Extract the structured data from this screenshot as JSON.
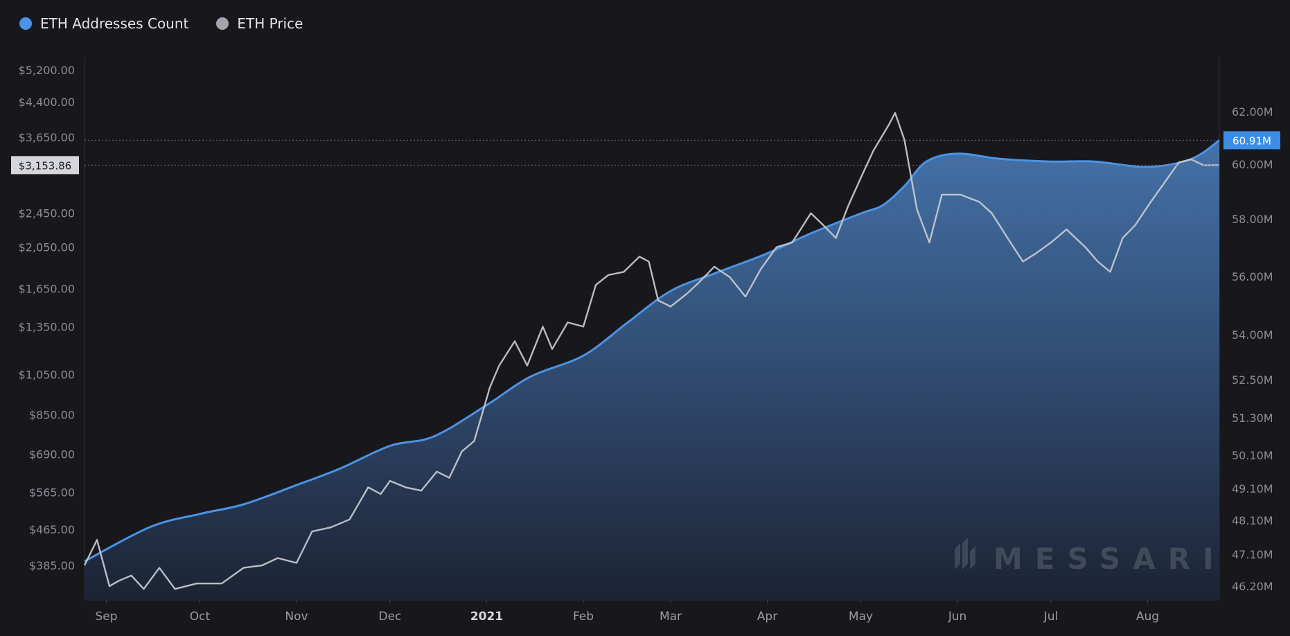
{
  "legend": {
    "series_a": "ETH Addresses Count",
    "series_b": "ETH Price"
  },
  "colors": {
    "background": "#18181c",
    "addresses": "#4b93e6",
    "price": "#c8cbd3",
    "area_top": "#4676b0",
    "area_bottom": "#1c2334",
    "current_price_badge": "#d4d6dc",
    "current_addr_badge": "#3a8ee6"
  },
  "watermark": "MESSARI",
  "current": {
    "price_label": "$3,153.86",
    "price_value": 3153.86,
    "addresses_label": "60.91M",
    "addresses_value": 60.91
  },
  "chart_data": {
    "type": "line",
    "x_range": [
      "2020-08-25",
      "2021-08-24"
    ],
    "x_tick_labels": [
      {
        "label": "Sep",
        "date": "2020-09-01"
      },
      {
        "label": "Oct",
        "date": "2020-10-01"
      },
      {
        "label": "Nov",
        "date": "2020-11-01"
      },
      {
        "label": "Dec",
        "date": "2020-12-01"
      },
      {
        "label": "2021",
        "date": "2021-01-01",
        "bold": true
      },
      {
        "label": "Feb",
        "date": "2021-02-01"
      },
      {
        "label": "Mar",
        "date": "2021-03-01"
      },
      {
        "label": "Apr",
        "date": "2021-04-01"
      },
      {
        "label": "May",
        "date": "2021-05-01"
      },
      {
        "label": "Jun",
        "date": "2021-06-01"
      },
      {
        "label": "Jul",
        "date": "2021-07-01"
      },
      {
        "label": "Aug",
        "date": "2021-08-01"
      }
    ],
    "y_left": {
      "scale": "log",
      "range": [
        325,
        5600
      ],
      "ticks": [
        385,
        465,
        565,
        690,
        850,
        1050,
        1350,
        1650,
        2050,
        2450,
        3650,
        4400,
        5200
      ],
      "tick_labels": [
        "$385.00",
        "$465.00",
        "$565.00",
        "$690.00",
        "$850.00",
        "$1,050.00",
        "$1,350.00",
        "$1,650.00",
        "$2,050.00",
        "$2,450.00",
        "$3,650.00",
        "$4,400.00",
        "$5,200.00"
      ]
    },
    "y_right": {
      "scale": "nonlinear",
      "ticks": [
        46.2,
        47.1,
        48.1,
        49.1,
        50.1,
        51.3,
        52.5,
        54.0,
        56.0,
        58.0,
        60.0,
        62.0
      ],
      "tick_labels": [
        "46.20M",
        "47.10M",
        "48.10M",
        "49.10M",
        "50.10M",
        "51.30M",
        "52.50M",
        "54.00M",
        "56.00M",
        "58.00M",
        "60.00M",
        "62.00M"
      ]
    },
    "series": [
      {
        "name": "ETH Addresses Count",
        "axis": "right",
        "unit": "M",
        "x": [
          "2020-08-25",
          "2020-09-15",
          "2020-10-01",
          "2020-10-15",
          "2020-11-01",
          "2020-11-15",
          "2020-12-01",
          "2020-12-15",
          "2021-01-01",
          "2021-01-15",
          "2021-02-01",
          "2021-02-15",
          "2021-03-01",
          "2021-03-15",
          "2021-04-01",
          "2021-04-15",
          "2021-05-01",
          "2021-05-08",
          "2021-05-15",
          "2021-05-22",
          "2021-06-01",
          "2021-06-15",
          "2021-07-01",
          "2021-07-15",
          "2021-08-01",
          "2021-08-15",
          "2021-08-24"
        ],
        "values": [
          46.9,
          47.9,
          48.3,
          48.6,
          49.2,
          49.7,
          50.4,
          50.7,
          51.7,
          52.6,
          53.3,
          54.4,
          55.5,
          56.1,
          56.8,
          57.5,
          58.2,
          58.5,
          59.2,
          60.1,
          60.4,
          60.2,
          60.1,
          60.1,
          59.9,
          60.2,
          60.91
        ]
      },
      {
        "name": "ETH Price",
        "axis": "left",
        "unit": "$",
        "x": [
          "2020-08-25",
          "2020-08-29",
          "2020-09-02",
          "2020-09-05",
          "2020-09-09",
          "2020-09-13",
          "2020-09-18",
          "2020-09-23",
          "2020-09-30",
          "2020-10-08",
          "2020-10-15",
          "2020-10-21",
          "2020-10-26",
          "2020-11-01",
          "2020-11-06",
          "2020-11-12",
          "2020-11-18",
          "2020-11-24",
          "2020-11-28",
          "2020-12-01",
          "2020-12-06",
          "2020-12-11",
          "2020-12-16",
          "2020-12-20",
          "2020-12-24",
          "2020-12-28",
          "2021-01-02",
          "2021-01-05",
          "2021-01-10",
          "2021-01-14",
          "2021-01-19",
          "2021-01-22",
          "2021-01-27",
          "2021-02-01",
          "2021-02-05",
          "2021-02-09",
          "2021-02-14",
          "2021-02-19",
          "2021-02-22",
          "2021-02-25",
          "2021-03-01",
          "2021-03-06",
          "2021-03-10",
          "2021-03-15",
          "2021-03-20",
          "2021-03-25",
          "2021-03-30",
          "2021-04-04",
          "2021-04-09",
          "2021-04-15",
          "2021-04-19",
          "2021-04-23",
          "2021-04-27",
          "2021-05-01",
          "2021-05-05",
          "2021-05-10",
          "2021-05-12",
          "2021-05-15",
          "2021-05-19",
          "2021-05-23",
          "2021-05-27",
          "2021-06-02",
          "2021-06-08",
          "2021-06-12",
          "2021-06-18",
          "2021-06-22",
          "2021-06-26",
          "2021-07-01",
          "2021-07-06",
          "2021-07-12",
          "2021-07-16",
          "2021-07-20",
          "2021-07-24",
          "2021-07-28",
          "2021-08-02",
          "2021-08-06",
          "2021-08-11",
          "2021-08-15",
          "2021-08-19",
          "2021-08-24"
        ],
        "values": [
          385,
          440,
          345,
          355,
          365,
          340,
          380,
          340,
          350,
          350,
          380,
          385,
          400,
          390,
          460,
          470,
          490,
          580,
          560,
          600,
          580,
          570,
          630,
          610,
          700,
          740,
          980,
          1100,
          1250,
          1100,
          1350,
          1200,
          1380,
          1350,
          1680,
          1770,
          1800,
          1950,
          1900,
          1550,
          1500,
          1600,
          1700,
          1850,
          1750,
          1580,
          1830,
          2050,
          2100,
          2450,
          2300,
          2150,
          2550,
          2950,
          3400,
          3900,
          4150,
          3600,
          2500,
          2100,
          2700,
          2700,
          2600,
          2450,
          2100,
          1900,
          1980,
          2100,
          2250,
          2050,
          1900,
          1800,
          2150,
          2300,
          2600,
          2850,
          3200,
          3250,
          3150,
          3153.86
        ]
      }
    ]
  }
}
